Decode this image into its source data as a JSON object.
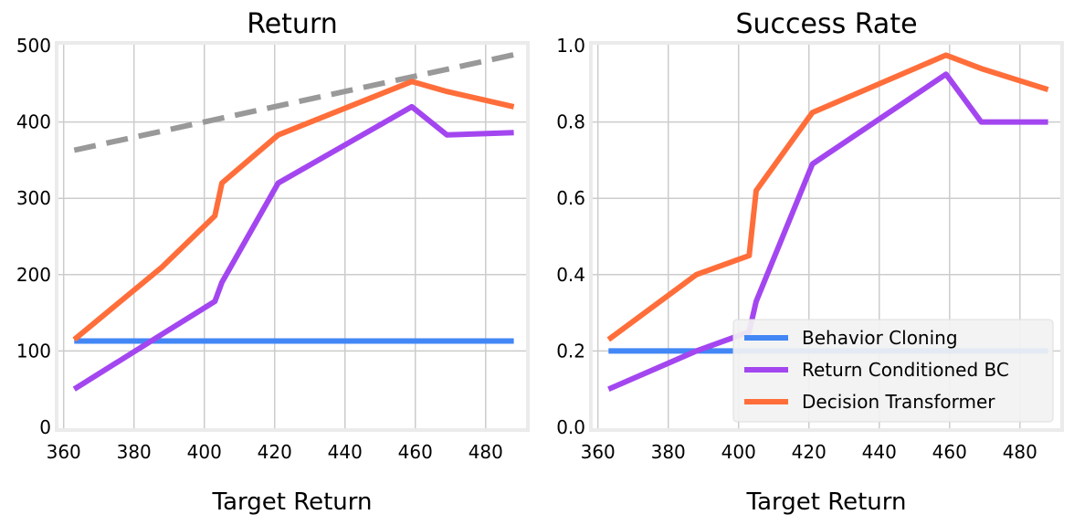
{
  "chart_data": [
    {
      "type": "line",
      "title": "Return",
      "xlabel": "Target Return",
      "ylabel": "",
      "xlim": [
        358,
        492
      ],
      "ylim": [
        0,
        500
      ],
      "xticks": [
        360,
        380,
        400,
        420,
        440,
        460,
        480
      ],
      "yticks": [
        0,
        100,
        200,
        300,
        400,
        500
      ],
      "grid": true,
      "series": [
        {
          "key": "reference",
          "color": "#999999",
          "dashed": true,
          "points": [
            [
              363,
              363
            ],
            [
              488,
              488
            ]
          ]
        },
        {
          "key": "bc",
          "name": "Behavior Cloning",
          "color": "#4287f5",
          "points": [
            [
              363,
              113
            ],
            [
              488,
              113
            ]
          ]
        },
        {
          "key": "rcbc",
          "name": "Return Conditioned BC",
          "color": "#a346f0",
          "points": [
            [
              363,
              50
            ],
            [
              388,
              122
            ],
            [
              403,
              165
            ],
            [
              405,
              190
            ],
            [
              421,
              320
            ],
            [
              459,
              420
            ],
            [
              469,
              383
            ],
            [
              488,
              386
            ]
          ]
        },
        {
          "key": "dt",
          "name": "Decision Transformer",
          "color": "#ff6e3a",
          "points": [
            [
              363,
              115
            ],
            [
              388,
              210
            ],
            [
              403,
              277
            ],
            [
              405,
              320
            ],
            [
              421,
              383
            ],
            [
              459,
              453
            ],
            [
              469,
              440
            ],
            [
              488,
              420
            ]
          ]
        }
      ]
    },
    {
      "type": "line",
      "title": "Success Rate",
      "xlabel": "Target Return",
      "ylabel": "",
      "xlim": [
        358,
        492
      ],
      "ylim": [
        0,
        1.0
      ],
      "xticks": [
        360,
        380,
        400,
        420,
        440,
        460,
        480
      ],
      "yticks": [
        0.0,
        0.2,
        0.4,
        0.6,
        0.8,
        1.0
      ],
      "grid": true,
      "legend": "bottom-right",
      "series": [
        {
          "key": "bc",
          "name": "Behavior Cloning",
          "color": "#4287f5",
          "points": [
            [
              363,
              0.2
            ],
            [
              488,
              0.2
            ]
          ]
        },
        {
          "key": "rcbc",
          "name": "Return Conditioned BC",
          "color": "#a346f0",
          "points": [
            [
              363,
              0.1
            ],
            [
              388,
              0.2
            ],
            [
              403,
              0.25
            ],
            [
              405,
              0.33
            ],
            [
              421,
              0.69
            ],
            [
              459,
              0.925
            ],
            [
              469,
              0.8
            ],
            [
              488,
              0.8
            ]
          ]
        },
        {
          "key": "dt",
          "name": "Decision Transformer",
          "color": "#ff6e3a",
          "points": [
            [
              363,
              0.23
            ],
            [
              388,
              0.4
            ],
            [
              403,
              0.45
            ],
            [
              405,
              0.62
            ],
            [
              421,
              0.825
            ],
            [
              459,
              0.975
            ],
            [
              469,
              0.94
            ],
            [
              488,
              0.885
            ]
          ]
        }
      ]
    }
  ],
  "legend": {
    "items": [
      {
        "label": "Behavior Cloning",
        "color": "#4287f5"
      },
      {
        "label": "Return Conditioned BC",
        "color": "#a346f0"
      },
      {
        "label": "Decision Transformer",
        "color": "#ff6e3a"
      }
    ]
  }
}
